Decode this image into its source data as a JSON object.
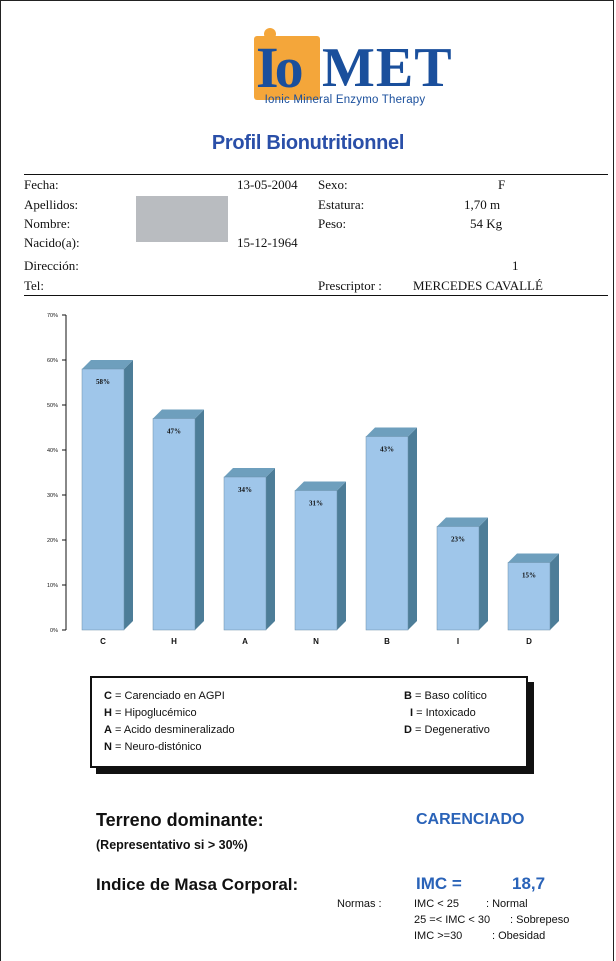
{
  "logo": {
    "io": "Io",
    "met": "MET",
    "subtitle": "Ionic Mineral Enzymo Therapy"
  },
  "title": "Profil Bionutritionnel",
  "patient": {
    "fecha_label": "Fecha:",
    "fecha": "13-05-2004",
    "sexo_label": "Sexo:",
    "sexo": "F",
    "apellidos_label": "Apellidos:",
    "estatura_label": "Estatura:",
    "estatura": "1,70 m",
    "nombre_label": "Nombre:",
    "peso_label": "Peso:",
    "peso": "54 Kg",
    "nacido_label": "Nacido(a):",
    "nacido": "15-12-1964",
    "direccion_label": "Dirección:",
    "direccion_num": "1",
    "tel_label": "Tel:",
    "prescriptor_label": "Prescriptor :",
    "prescriptor": "MERCEDES CAVALLÉ"
  },
  "chart_data": {
    "type": "bar",
    "categories": [
      "C",
      "H",
      "A",
      "N",
      "B",
      "I",
      "D"
    ],
    "values": [
      58,
      47,
      34,
      31,
      43,
      23,
      15
    ],
    "value_labels": [
      "58%",
      "47%",
      "34%",
      "31%",
      "43%",
      "23%",
      "15%"
    ],
    "ylim": [
      0,
      70
    ],
    "yticks": [
      "0%",
      "10%",
      "20%",
      "30%",
      "40%",
      "50%",
      "60%",
      "70%"
    ],
    "grid": false,
    "colors": {
      "front": "#9fc6ea",
      "side": "#4d7d98",
      "top": "#6e9fbd"
    }
  },
  "legend": {
    "items": [
      {
        "key": "C",
        "text": "= Carenciado en AGPI"
      },
      {
        "key": "H",
        "text": "= Hipoglucémico"
      },
      {
        "key": "A",
        "text": "= Acido desmineralizado"
      },
      {
        "key": "N",
        "text": "= Neuro-distónico"
      },
      {
        "key": "B",
        "text": "= Baso colítico"
      },
      {
        "key": "I",
        "text": "= Intoxicado"
      },
      {
        "key": "D",
        "text": "= Degenerativo"
      }
    ]
  },
  "terreno": {
    "label": "Terreno dominante:",
    "note": "(Representativo si > 30%)",
    "value": "CARENCIADO"
  },
  "imc": {
    "label": "Indice de Masa Corporal:",
    "name": "IMC =",
    "value": "18,7",
    "normas_label": "Normas :",
    "normas": [
      {
        "range": "IMC < 25",
        "desc": ": Normal"
      },
      {
        "range": "25 =< IMC  < 30",
        "desc": ": Sobrepeso"
      },
      {
        "range": "IMC >=30",
        "desc": ": Obesidad"
      }
    ]
  },
  "accent_color": "#2a63b8"
}
